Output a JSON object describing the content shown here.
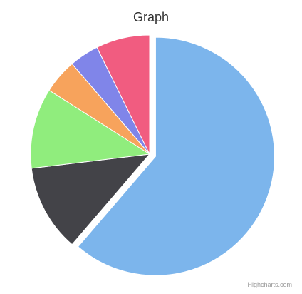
{
  "chart": {
    "title": "Graph",
    "credits": "Highcharts.com"
  },
  "chart_data": {
    "type": "pie",
    "title": "Graph",
    "values": [
      61.3,
      11.8,
      10.9,
      4.7,
      4.0,
      7.3
    ],
    "colors": [
      "#7cb5ec",
      "#434348",
      "#90ed7d",
      "#f7a35c",
      "#8085e9",
      "#f15c80"
    ],
    "sliced_index": 0,
    "start_angle_deg": 0,
    "legend": "none",
    "data_labels": false
  }
}
